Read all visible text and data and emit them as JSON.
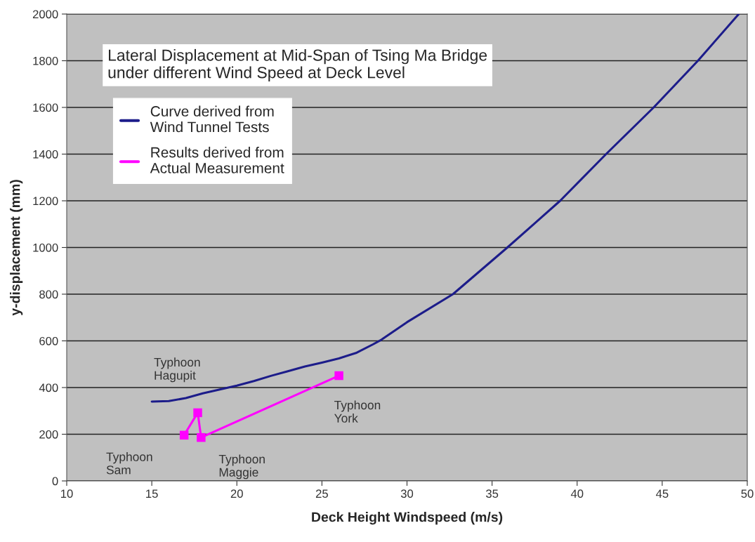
{
  "chart_data": {
    "type": "line",
    "title": "Lateral Displacement at Mid-Span of Tsing Ma Bridge\nunder different Wind Speed at Deck Level",
    "xlabel": "Deck Height Windspeed (m/s)",
    "ylabel": "y-displacement (mm)",
    "xlim": [
      10,
      50
    ],
    "xticks": [
      10,
      15,
      20,
      25,
      30,
      35,
      40,
      45,
      50
    ],
    "ylim": [
      0,
      2000
    ],
    "yticks": [
      0,
      200,
      400,
      600,
      800,
      1000,
      1200,
      1400,
      1600,
      1800,
      2000
    ],
    "grid": "y",
    "legend": "top left",
    "series": [
      {
        "name": "Curve derived from\nWind Tunnel Tests",
        "color": "#1c1c8a",
        "marker": "none",
        "x": [
          15,
          16,
          17,
          18,
          19,
          20,
          21,
          22,
          23,
          24,
          25,
          26,
          27,
          28,
          28.5,
          30,
          32.7,
          35.9,
          39,
          41.7,
          44.5,
          47.1,
          49.5
        ],
        "values": [
          340,
          342,
          355,
          375,
          392,
          408,
          428,
          450,
          470,
          490,
          507,
          525,
          548,
          585,
          605,
          680,
          800,
          1000,
          1200,
          1400,
          1600,
          1800,
          2000
        ]
      },
      {
        "name": "Results derived from\nActual Measurement",
        "color": "#ff00ff",
        "marker": "square",
        "x": [
          16.9,
          17.7,
          17.9,
          26
        ],
        "values": [
          196,
          292,
          186,
          451
        ]
      }
    ],
    "annotations": [
      {
        "text": "Typhoon\nHagupit",
        "x": 17.7,
        "y": 292
      },
      {
        "text": "Typhoon\nSam",
        "x": 16.9,
        "y": 196
      },
      {
        "text": "Typhoon\nMaggie",
        "x": 17.9,
        "y": 186
      },
      {
        "text": "Typhoon\nYork",
        "x": 26,
        "y": 451
      }
    ]
  }
}
